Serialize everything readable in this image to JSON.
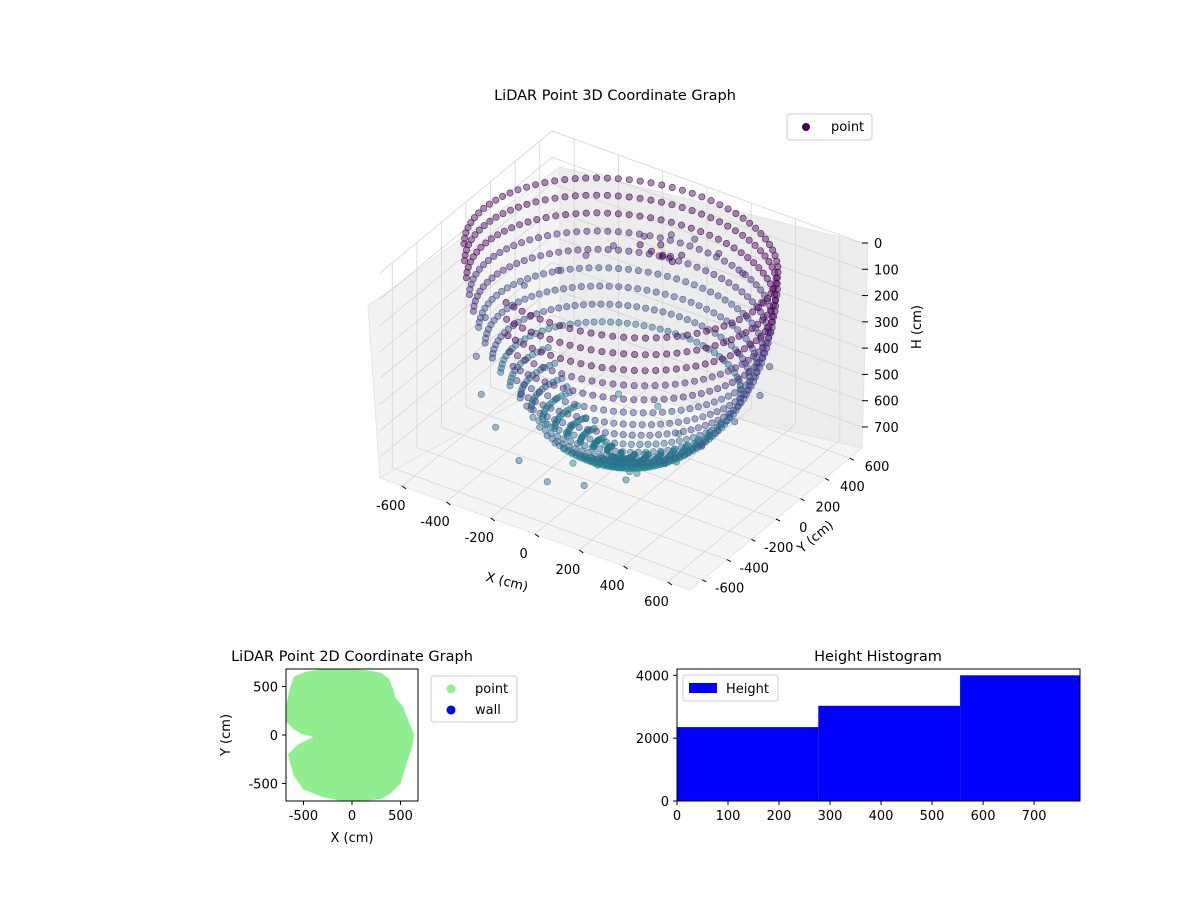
{
  "figure": {
    "background": "#ffffff"
  },
  "chart_data": [
    {
      "type": "scatter",
      "projection": "3d",
      "title": "LiDAR Point 3D Coordinate Graph",
      "xlabel": "X (cm)",
      "ylabel": "Y (cm)",
      "zlabel": "H (cm)",
      "xlim": [
        -700,
        700
      ],
      "ylim": [
        -700,
        700
      ],
      "zlim": [
        780,
        0
      ],
      "z_inverted": true,
      "xticks": [
        -600,
        -400,
        -200,
        0,
        200,
        400,
        600
      ],
      "yticks": [
        -600,
        -400,
        -200,
        0,
        200,
        400,
        600
      ],
      "zticks": [
        0,
        100,
        200,
        300,
        400,
        500,
        600,
        700
      ],
      "grid": true,
      "legend": {
        "entries": [
          "point"
        ],
        "placement": "upper-right"
      },
      "colormap": "viridis",
      "marker_color": "#440154",
      "series": [
        {
          "name": "point",
          "description_of_shape": "hemispherical dome surface of points, radius approx 620 cm, height 0-780 cm, plus partial walls and a small cluster near the top",
          "points": [
            [
              -520,
              150,
              320
            ],
            [
              -450,
              300,
              300
            ],
            [
              -380,
              400,
              260
            ],
            [
              -300,
              480,
              230
            ],
            [
              -200,
              550,
              190
            ],
            [
              -100,
              590,
              170
            ],
            [
              0,
              600,
              160
            ],
            [
              120,
              580,
              170
            ],
            [
              250,
              540,
              190
            ],
            [
              380,
              460,
              230
            ],
            [
              480,
              350,
              270
            ],
            [
              560,
              200,
              320
            ],
            [
              600,
              50,
              360
            ],
            [
              580,
              -120,
              400
            ],
            [
              520,
              -280,
              450
            ],
            [
              420,
              -400,
              500
            ],
            [
              300,
              -500,
              560
            ],
            [
              150,
              -570,
              600
            ],
            [
              0,
              -600,
              620
            ],
            [
              -150,
              -560,
              600
            ],
            [
              -300,
              -480,
              550
            ],
            [
              -420,
              -380,
              500
            ],
            [
              -520,
              -240,
              440
            ],
            [
              -580,
              -60,
              380
            ],
            [
              -300,
              100,
              620
            ],
            [
              -150,
              250,
              660
            ],
            [
              0,
              300,
              680
            ],
            [
              150,
              200,
              700
            ],
            [
              250,
              0,
              700
            ],
            [
              150,
              -200,
              690
            ],
            [
              -50,
              -300,
              680
            ],
            [
              -250,
              -150,
              650
            ],
            [
              -100,
              50,
              760
            ],
            [
              50,
              100,
              770
            ],
            [
              100,
              -50,
              770
            ],
            [
              -50,
              -100,
              765
            ],
            [
              -80,
              300,
              90
            ],
            [
              -40,
              320,
              110
            ],
            [
              0,
              340,
              120
            ],
            [
              40,
              330,
              110
            ],
            [
              80,
              350,
              100
            ],
            [
              -20,
              360,
              95
            ],
            [
              20,
              300,
              105
            ],
            [
              60,
              310,
              115
            ]
          ]
        }
      ]
    },
    {
      "type": "scatter",
      "title": "LiDAR Point 2D Coordinate Graph",
      "xlabel": "X (cm)",
      "ylabel": "Y (cm)",
      "xlim": [
        -680,
        680
      ],
      "ylim": [
        -680,
        680
      ],
      "xticks": [
        -500,
        0,
        500
      ],
      "yticks": [
        -500,
        0,
        500
      ],
      "grid": false,
      "legend": {
        "entries": [
          "point",
          "wall"
        ],
        "placement": "outside-right"
      },
      "series": [
        {
          "name": "point",
          "color": "#90ee90",
          "filled_region_outline": [
            [
              -600,
              600
            ],
            [
              -480,
              650
            ],
            [
              -300,
              680
            ],
            [
              0,
              680
            ],
            [
              200,
              660
            ],
            [
              300,
              640
            ],
            [
              380,
              580
            ],
            [
              420,
              480
            ],
            [
              450,
              380
            ],
            [
              520,
              300
            ],
            [
              600,
              100
            ],
            [
              640,
              0
            ],
            [
              620,
              -120
            ],
            [
              560,
              -300
            ],
            [
              500,
              -500
            ],
            [
              400,
              -600
            ],
            [
              300,
              -660
            ],
            [
              100,
              -680
            ],
            [
              -100,
              -680
            ],
            [
              -300,
              -640
            ],
            [
              -500,
              -560
            ],
            [
              -600,
              -420
            ],
            [
              -660,
              -200
            ],
            [
              -560,
              -100
            ],
            [
              -400,
              -20
            ],
            [
              -520,
              10
            ],
            [
              -600,
              60
            ],
            [
              -680,
              140
            ],
            [
              -680,
              300
            ],
            [
              -640,
              480
            ]
          ]
        },
        {
          "name": "wall",
          "color": "#0000ff",
          "points": []
        }
      ]
    },
    {
      "type": "bar",
      "histogram": true,
      "title": "Height Histogram",
      "xlabel": "",
      "ylabel": "",
      "xlim": [
        0,
        790
      ],
      "ylim": [
        0,
        4200
      ],
      "xticks": [
        0,
        100,
        200,
        300,
        400,
        500,
        600,
        700
      ],
      "yticks": [
        0,
        2000,
        4000
      ],
      "grid": false,
      "legend": {
        "entries": [
          "Height"
        ],
        "placement": "upper-left"
      },
      "series": [
        {
          "name": "Height",
          "color": "#0000ff",
          "bin_edges": [
            0,
            277,
            555,
            790
          ],
          "values": [
            2350,
            3030,
            4000
          ]
        }
      ]
    }
  ]
}
